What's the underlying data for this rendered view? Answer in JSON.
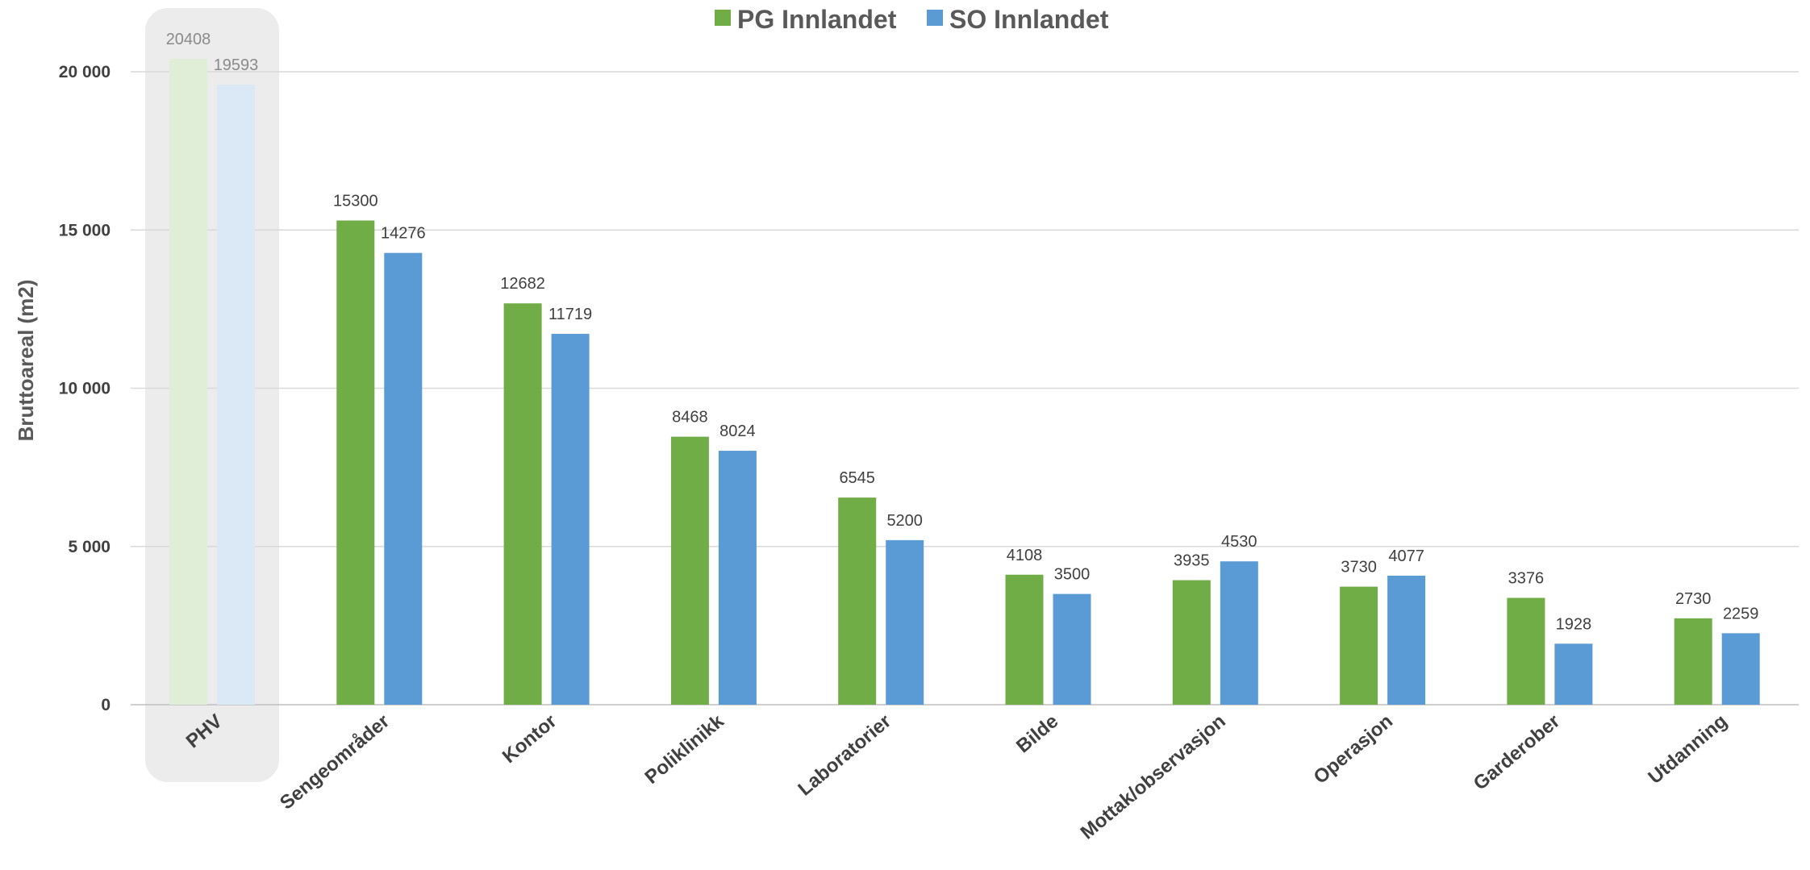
{
  "chart_data": {
    "type": "bar",
    "ylabel": "Bruttoareal (m2)",
    "xlabel": "",
    "ylim": [
      0,
      20000
    ],
    "y_ticks": [
      {
        "value": 0,
        "label": "0"
      },
      {
        "value": 5000,
        "label": "5 000"
      },
      {
        "value": 10000,
        "label": "10 000"
      },
      {
        "value": 15000,
        "label": "15 000"
      },
      {
        "value": 20000,
        "label": "20 000"
      }
    ],
    "categories": [
      "PHV",
      "Sengeområder",
      "Kontor",
      "Poliklinikk",
      "Laboratorier",
      "Bilde",
      "Mottak/observasjon",
      "Operasjon",
      "Garderober",
      "Utdanning"
    ],
    "highlighted_category": "PHV",
    "series": [
      {
        "name": "PG Innlandet",
        "color": "#70AD47",
        "values": [
          20408,
          15300,
          12682,
          8468,
          6545,
          4108,
          3935,
          3730,
          3376,
          2730
        ]
      },
      {
        "name": "SO Innlandet",
        "color": "#5B9BD5",
        "values": [
          19593,
          14276,
          11719,
          8024,
          5200,
          3500,
          4530,
          4077,
          1928,
          2259
        ]
      }
    ],
    "legend_position": "top-center",
    "grid": true
  }
}
